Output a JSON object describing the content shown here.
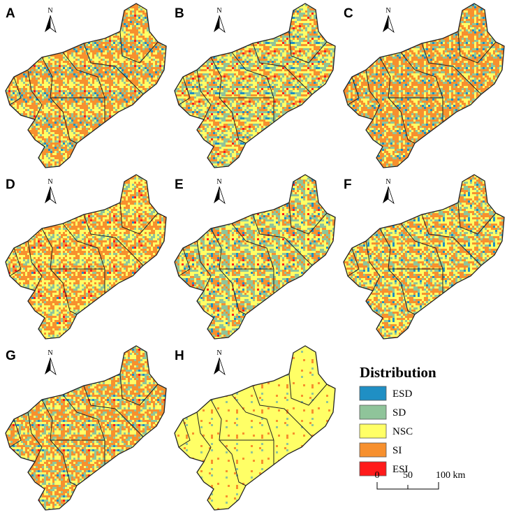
{
  "panels": [
    {
      "label": "A"
    },
    {
      "label": "B"
    },
    {
      "label": "C"
    },
    {
      "label": "D"
    },
    {
      "label": "E"
    },
    {
      "label": "F"
    },
    {
      "label": "G"
    },
    {
      "label": "H"
    }
  ],
  "north_label": "N",
  "legend": {
    "title": "Distribution",
    "items": [
      {
        "label": "ESD",
        "color": "#1f8fc4"
      },
      {
        "label": "SD",
        "color": "#8fc49a"
      },
      {
        "label": "NSC",
        "color": "#ffff66"
      },
      {
        "label": "SI",
        "color": "#f7902e"
      },
      {
        "label": "ESI",
        "color": "#ff1a1a"
      }
    ]
  },
  "scale_bar": {
    "labels": [
      "0",
      "50",
      "100 km"
    ]
  }
}
